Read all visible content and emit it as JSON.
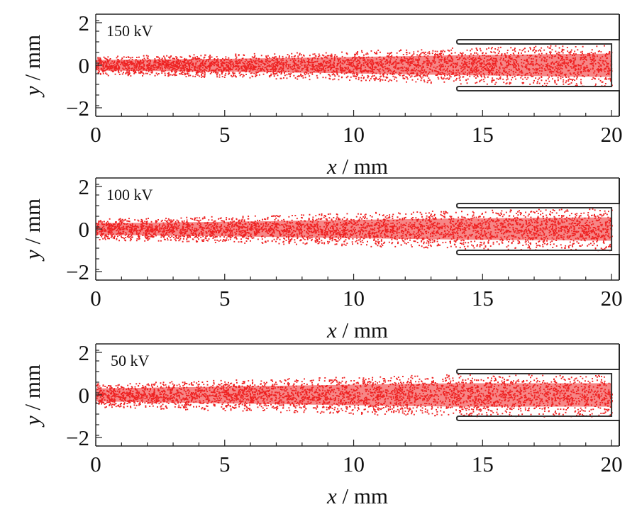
{
  "chart_data": [
    {
      "type": "scatter",
      "annotation": "150 kV",
      "xlabel_var": "x",
      "xlabel_unit": " / mm",
      "ylabel_var": "y",
      "ylabel_unit": " / mm",
      "xlim": [
        0,
        20.3
      ],
      "ylim": [
        -2.4,
        2.4
      ],
      "xticks": [
        0,
        5,
        10,
        15,
        20
      ],
      "xtick_labels": [
        "0",
        "5",
        "10",
        "15",
        "20"
      ],
      "yticks": [
        2,
        0,
        -2
      ],
      "ytick_labels": [
        "2",
        "0",
        "−2"
      ],
      "series": [
        {
          "color": "#ee2222",
          "half_width": [
            [
              0,
              0.45
            ],
            [
              5,
              0.55
            ],
            [
              10,
              0.7
            ],
            [
              14,
              0.85
            ],
            [
              20,
              1.0
            ]
          ]
        }
      ],
      "electrode": {
        "x_start": 14,
        "x_end": 20,
        "inner_y": 1.0,
        "outer_y": 1.2,
        "wall_x": 20.0,
        "outer_wall_x": 20.3
      }
    },
    {
      "type": "scatter",
      "annotation": "100 kV",
      "xlabel_var": "x",
      "xlabel_unit": " / mm",
      "ylabel_var": "y",
      "ylabel_unit": " / mm",
      "xlim": [
        0,
        20.3
      ],
      "ylim": [
        -2.4,
        2.4
      ],
      "xticks": [
        0,
        5,
        10,
        15,
        20
      ],
      "xtick_labels": [
        "0",
        "5",
        "10",
        "15",
        "20"
      ],
      "yticks": [
        2,
        0,
        -2
      ],
      "ytick_labels": [
        "2",
        "0",
        "−2"
      ],
      "series": [
        {
          "color": "#ee2222",
          "half_width": [
            [
              0,
              0.5
            ],
            [
              5,
              0.62
            ],
            [
              10,
              0.78
            ],
            [
              14,
              0.9
            ],
            [
              20,
              1.0
            ]
          ]
        }
      ],
      "electrode": {
        "x_start": 14,
        "x_end": 20,
        "inner_y": 1.0,
        "outer_y": 1.2,
        "wall_x": 20.0,
        "outer_wall_x": 20.3
      }
    },
    {
      "type": "scatter",
      "annotation": "50 kV",
      "xlabel_var": "x",
      "xlabel_unit": " / mm",
      "ylabel_var": "y",
      "ylabel_unit": " / mm",
      "xlim": [
        0,
        20.3
      ],
      "ylim": [
        -2.4,
        2.4
      ],
      "xticks": [
        0,
        5,
        10,
        15,
        20
      ],
      "xtick_labels": [
        "0",
        "5",
        "10",
        "15",
        "20"
      ],
      "yticks": [
        2,
        0,
        -2
      ],
      "ytick_labels": [
        "2",
        "0",
        "−2"
      ],
      "series": [
        {
          "color": "#ee2222",
          "half_width": [
            [
              0,
              0.55
            ],
            [
              5,
              0.72
            ],
            [
              10,
              0.88
            ],
            [
              14,
              1.0
            ],
            [
              20,
              1.0
            ]
          ]
        }
      ],
      "electrode": {
        "x_start": 14,
        "x_end": 20,
        "inner_y": 1.0,
        "outer_y": 1.2,
        "wall_x": 20.0,
        "outer_wall_x": 20.3
      }
    }
  ]
}
